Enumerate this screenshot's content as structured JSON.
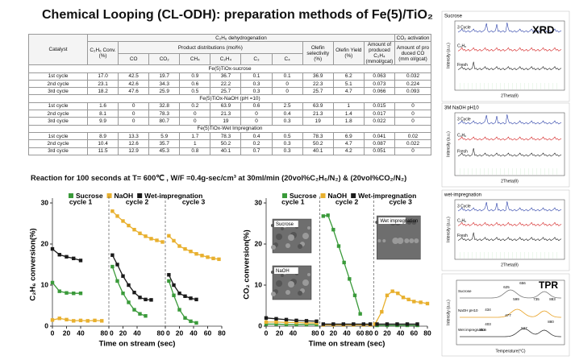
{
  "title": "Chemical Looping (CL-ODH): preparation methods of Fe(5)/TiO₂",
  "table": {
    "catalyst_header": "Catalyst",
    "group_headers": [
      "C₂H₆ dehydrogenation",
      "CO₂ activation"
    ],
    "conv_header": "C₂H₆ Conv.(%)",
    "product_header": "Product distributions (mol%)",
    "product_cols": [
      "CO",
      "CO₂",
      "CH₄",
      "C₂H₄",
      "C₃",
      "C₄"
    ],
    "after_headers": [
      "Olefin selectivity (%)",
      "Olefin Yield (%)",
      "Amount of produced C₂H₄ (mmol/gcat)",
      "Amount of pro duced CO (mm ol/gcat)"
    ],
    "sections": [
      {
        "name": "Fe(5)TiOx-sucrose",
        "rows": [
          [
            "1st cycle",
            "17.0",
            "42.5",
            "19.7",
            "0.9",
            "36.7",
            "0.1",
            "0.1",
            "36.9",
            "6.2",
            "0.063",
            "0.032"
          ],
          [
            "2nd cycle",
            "23.1",
            "42.6",
            "34.3",
            "0.6",
            "22.2",
            "0.3",
            "0",
            "22.3",
            "5.1",
            "0.073",
            "0.224"
          ],
          [
            "3rd cycle",
            "18.2",
            "47.6",
            "25.9",
            "0.5",
            "25.7",
            "0.3",
            "0",
            "25.7",
            "4.7",
            "0.066",
            "0.093"
          ]
        ]
      },
      {
        "name": "Fe(5)TiOx-NaOH (pH =10)",
        "rows": [
          [
            "1st cycle",
            "1.6",
            "0",
            "32.8",
            "0.2",
            "63.9",
            "0.6",
            "2.5",
            "63.9",
            "1",
            "0.015",
            "0"
          ],
          [
            "2nd cycle",
            "8.1",
            "0",
            "78.3",
            "0",
            "21.3",
            "0",
            "0.4",
            "21.3",
            "1.4",
            "0.017",
            "0"
          ],
          [
            "3rd cycle",
            "9.9",
            "0",
            "80.7",
            "0",
            "19",
            "0",
            "0.3",
            "19",
            "1.8",
            "0.022",
            "0"
          ]
        ]
      },
      {
        "name": "Fe(5)TiOx-Wet Impregnation",
        "rows": [
          [
            "1st cycle",
            "8.9",
            "13.3",
            "5.9",
            "1.7",
            "78.3",
            "0.4",
            "0.5",
            "78.3",
            "6.9",
            "0.041",
            "0.02"
          ],
          [
            "2nd cycle",
            "10.4",
            "12.6",
            "35.7",
            "1",
            "50.2",
            "0.2",
            "0.3",
            "50.2",
            "4.7",
            "0.087",
            "0.022"
          ],
          [
            "3rd cycle",
            "11.5",
            "12.9",
            "45.3",
            "0.8",
            "40.1",
            "0.7",
            "0.3",
            "40.1",
            "4.2",
            "0.051",
            "0"
          ]
        ]
      }
    ]
  },
  "reaction_note": "Reaction for 100 seconds at T= 600℃ , W/F =0.4g-sec/cm³ at 30ml/min (20vol%C₂H₆/N₂) & (20vol%CO₂/N₂)",
  "charts": [
    {
      "type": "line",
      "y_label": "C₂H₆ conversion(%)",
      "x_label": "Time on stream (sec)",
      "ylim": [
        0,
        30
      ],
      "yticks": [
        0,
        10,
        20,
        30
      ],
      "cycles": [
        {
          "label": "cycle 1",
          "xlim": [
            0,
            80
          ],
          "xticks": [
            0,
            20,
            40,
            80
          ]
        },
        {
          "label": "cycle 2",
          "xlim": [
            0,
            80
          ],
          "xticks": [
            0,
            20,
            40,
            80
          ]
        },
        {
          "label": "cycle 3",
          "xlim": [
            0,
            80
          ],
          "xticks": [
            0,
            20,
            40,
            60,
            80
          ]
        }
      ],
      "series": [
        {
          "name": "Sucrose",
          "color": "#3a9a3a",
          "data": [
            {
              "x": [
                0,
                10,
                20,
                30,
                40
              ],
              "values": [
                10.6,
                8.5,
                8.1,
                8.0,
                8.0
              ]
            },
            {
              "x": [
                5,
                12,
                20,
                28,
                36,
                44,
                52
              ],
              "values": [
                14.5,
                11.0,
                8.0,
                5.8,
                4.0,
                3.0,
                2.5
              ]
            },
            {
              "x": [
                5,
                12,
                20,
                28,
                36,
                44
              ],
              "values": [
                11.0,
                7.5,
                4.0,
                2.0,
                1.2,
                0.8
              ]
            }
          ]
        },
        {
          "name": "NaOH",
          "color": "#e8b02e",
          "data": [
            {
              "x": [
                0,
                10,
                20,
                30,
                40,
                50,
                60,
                70
              ],
              "values": [
                1.5,
                1.9,
                1.6,
                1.3,
                1.4,
                1.3,
                1.4,
                1.3
              ]
            },
            {
              "x": [
                5,
                12,
                20,
                28,
                36,
                44,
                52,
                60,
                68,
                76
              ],
              "values": [
                28.0,
                26.8,
                25.6,
                24.5,
                23.5,
                22.6,
                21.9,
                21.3,
                20.9,
                20.5
              ]
            },
            {
              "x": [
                5,
                12,
                20,
                28,
                36,
                44,
                52,
                60,
                68,
                76
              ],
              "values": [
                22.0,
                20.8,
                19.5,
                18.8,
                18.2,
                17.6,
                17.2,
                16.8,
                16.5,
                16.3
              ]
            }
          ]
        },
        {
          "name": "Wet-impregnation",
          "color": "#1a1a1a",
          "data": [
            {
              "x": [
                0,
                10,
                20,
                30,
                40
              ],
              "values": [
                18.8,
                17.4,
                16.9,
                16.5,
                16.0
              ]
            },
            {
              "x": [
                5,
                12,
                20,
                28,
                36,
                44,
                52,
                60
              ],
              "values": [
                17.3,
                15.0,
                12.2,
                10.0,
                8.2,
                7.0,
                6.5,
                6.4
              ]
            },
            {
              "x": [
                5,
                12,
                20,
                28,
                36,
                44
              ],
              "values": [
                12.5,
                10.0,
                8.0,
                7.3,
                6.8,
                6.5
              ]
            }
          ]
        }
      ]
    },
    {
      "type": "line",
      "y_label": "CO₂ conversion(%)",
      "x_label": "Time on stream (sec)",
      "ylim": [
        0,
        30
      ],
      "yticks": [
        0,
        10,
        20,
        30
      ],
      "cycles": [
        {
          "label": "cycle 1",
          "xlim": [
            0,
            80
          ],
          "xticks": [
            0,
            20,
            40,
            80
          ]
        },
        {
          "label": "cycle 2",
          "xlim": [
            0,
            80
          ],
          "xticks": [
            0,
            20,
            40,
            60,
            80
          ]
        },
        {
          "label": "cycle 3",
          "xlim": [
            0,
            80
          ],
          "xticks": [
            0,
            20,
            40,
            60,
            80
          ]
        }
      ],
      "sem_images": [
        "Sucrose",
        "NaOH",
        "Wet impregnation"
      ],
      "series": [
        {
          "name": "Sucrose",
          "color": "#3a9a3a",
          "data": [
            {
              "x": [
                0,
                15,
                30,
                45,
                60,
                75
              ],
              "values": [
                0.5,
                0.5,
                0.4,
                0.4,
                0.4,
                0.4
              ]
            },
            {
              "x": [
                5,
                12,
                20,
                28,
                36,
                44,
                52,
                60
              ],
              "values": [
                26.8,
                27.0,
                23.5,
                19.5,
                15.5,
                11.5,
                7.5,
                3.0
              ]
            },
            {
              "x": [
                5,
                20,
                35,
                50,
                65
              ],
              "values": [
                0.2,
                0.2,
                0.2,
                0.2,
                0.2
              ]
            }
          ]
        },
        {
          "name": "NaOH",
          "color": "#e8b02e",
          "data": [
            {
              "x": [
                0,
                15,
                30,
                45,
                60,
                75
              ],
              "values": [
                1.0,
                1.0,
                0.9,
                0.9,
                0.8,
                0.8
              ]
            },
            {
              "x": [
                5,
                20,
                35,
                50,
                65,
                75
              ],
              "values": [
                0.3,
                0.3,
                0.3,
                0.3,
                0.3,
                0.3
              ]
            },
            {
              "x": [
                2,
                12,
                20,
                28,
                36,
                44,
                52,
                60,
                70,
                80
              ],
              "values": [
                0.5,
                3.5,
                7.5,
                8.5,
                8.0,
                7.0,
                6.5,
                6.0,
                5.8,
                5.5
              ]
            }
          ]
        },
        {
          "name": "Wet-impregnation",
          "color": "#1a1a1a",
          "data": [
            {
              "x": [
                0,
                15,
                30,
                45,
                60,
                75
              ],
              "values": [
                2.0,
                1.8,
                1.6,
                1.4,
                1.3,
                1.2
              ]
            },
            {
              "x": [
                5,
                20,
                35,
                50,
                65,
                75
              ],
              "values": [
                0.5,
                0.5,
                0.5,
                0.5,
                0.5,
                0.5
              ]
            },
            {
              "x": [
                5,
                20,
                35,
                50,
                65
              ],
              "values": [
                0.5,
                0.5,
                0.5,
                0.5,
                0.5
              ]
            }
          ]
        }
      ]
    }
  ],
  "side_panels": {
    "xrd_title": "XRD",
    "xrd": [
      {
        "sample": "Sucrose",
        "labels": [
          "3 Cycle",
          "C₂H₆",
          "Fresh"
        ],
        "y_label": "Intensity (a.u.)",
        "x_label": "2Theta(θ)"
      },
      {
        "sample": "3M NaOH pH10",
        "labels": [
          "3 Cycle",
          "C₂H₆",
          "Fresh"
        ],
        "y_label": "Intensity (a.u.)",
        "x_label": "2Theta(θ)"
      },
      {
        "sample": "wet-impregnation",
        "labels": [
          "3 Cycle",
          "C₂H₆",
          "Fresh"
        ],
        "y_label": "Intensity (a.u.)",
        "x_label": "2Theta(θ)"
      }
    ],
    "tpr": {
      "title": "TPR",
      "labels": [
        "Sucrose",
        "NaOH pH10",
        "Wet impregnation"
      ],
      "peaks": [
        "625",
        "656",
        "599",
        "735",
        "883",
        "434",
        "477",
        "527",
        "880",
        "262",
        "403"
      ],
      "x_label": "Temperature(°C)",
      "y_label": "Intensity (a.u.)"
    }
  }
}
